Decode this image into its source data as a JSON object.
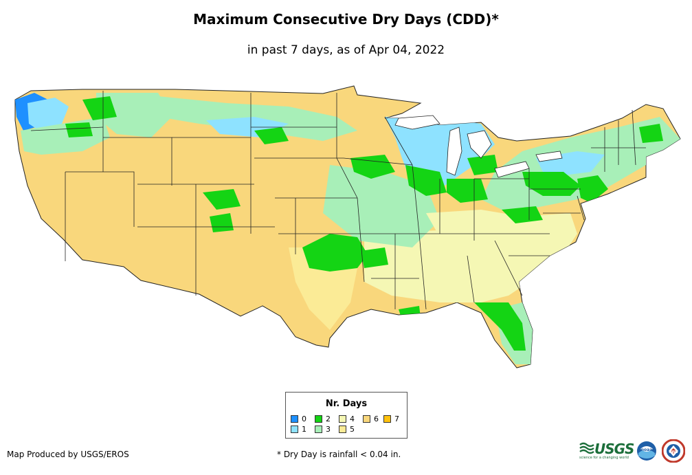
{
  "title": "Maximum Consecutive Dry Days (CDD)*",
  "subtitle": "in past 7 days, as of Apr 04, 2022",
  "legend": {
    "title": "Nr. Days",
    "items": [
      {
        "label": "0",
        "color": "#1e90ff"
      },
      {
        "label": "1",
        "color": "#8ee2ff"
      },
      {
        "label": "2",
        "color": "#14d414"
      },
      {
        "label": "3",
        "color": "#a8efb8"
      },
      {
        "label": "4",
        "color": "#f5f7b4"
      },
      {
        "label": "5",
        "color": "#fbeb96"
      },
      {
        "label": "6",
        "color": "#f9d77c"
      },
      {
        "label": "7",
        "color": "#ffc20e"
      }
    ]
  },
  "credit": "Map Produced by USGS/EROS",
  "footnote": "* Dry Day is rainfall < 0.04 in.",
  "logos": {
    "usgs": "USGS",
    "usgs_tagline": "science for a changing world",
    "noaa": "noaa",
    "nws": "NWS"
  }
}
